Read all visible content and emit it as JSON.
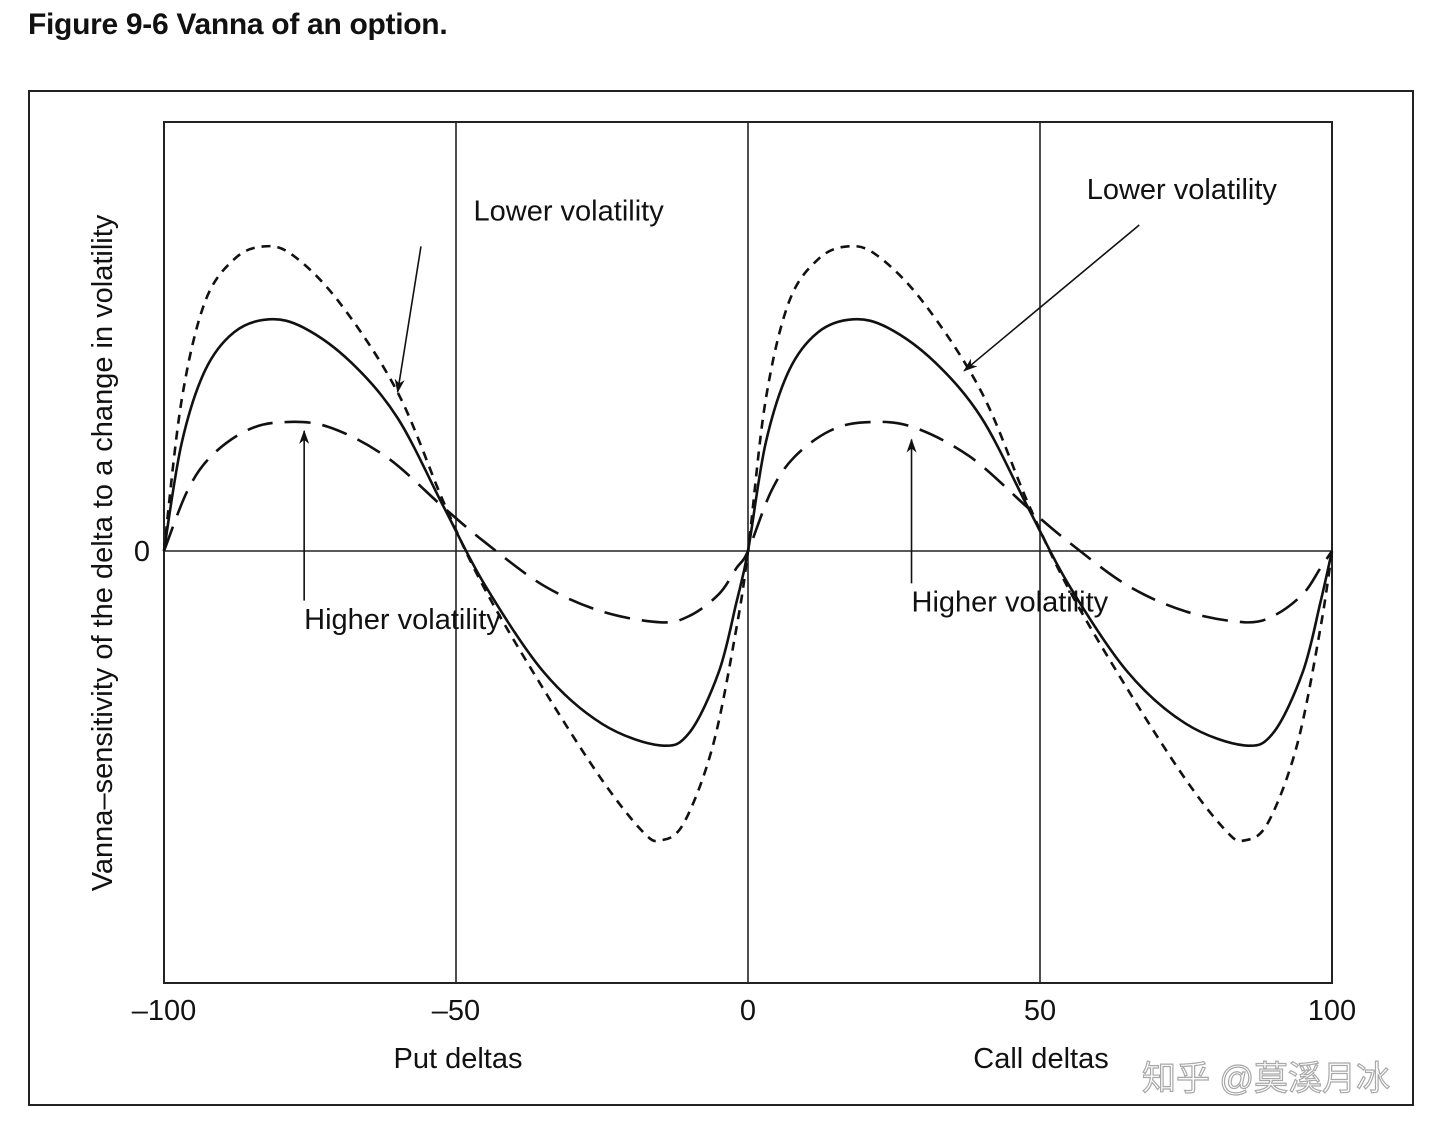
{
  "title": "Figure 9-6  Vanna of an option.",
  "watermark": "知乎 @莫溪月冰",
  "chart_data": {
    "type": "line",
    "title": "Figure 9-6  Vanna of an option.",
    "xlabel_put": "Put deltas",
    "xlabel_call": "Call deltas",
    "ylabel": "Vanna–sensitivity of the delta to a change in volatility",
    "xlim": [
      -100,
      100
    ],
    "ylim": [
      -1,
      1
    ],
    "x_ticks": [
      -100,
      -50,
      0,
      50,
      100
    ],
    "x_tick_labels": [
      "–100",
      "–50",
      "0",
      "50",
      "100"
    ],
    "y_ticks": [
      0
    ],
    "y_tick_labels": [
      "0"
    ],
    "vertical_gridlines": [
      -50,
      0,
      50
    ],
    "grid": false,
    "series": [
      {
        "style": "short-dash",
        "points": [
          [
            -100,
            0
          ],
          [
            -97,
            0.35
          ],
          [
            -93,
            0.58
          ],
          [
            -88,
            0.68
          ],
          [
            -83,
            0.71
          ],
          [
            -78,
            0.69
          ],
          [
            -70,
            0.58
          ],
          [
            -60,
            0.37
          ],
          [
            -52,
            0.11
          ],
          [
            -45,
            -0.09
          ],
          [
            -35,
            -0.32
          ],
          [
            -25,
            -0.53
          ],
          [
            -18,
            -0.65
          ],
          [
            -15,
            -0.67
          ],
          [
            -11,
            -0.63
          ],
          [
            -6,
            -0.45
          ],
          [
            -2,
            -0.18
          ],
          [
            0,
            0
          ],
          [
            3,
            0.35
          ],
          [
            7,
            0.58
          ],
          [
            12,
            0.68
          ],
          [
            17,
            0.71
          ],
          [
            22,
            0.69
          ],
          [
            30,
            0.58
          ],
          [
            40,
            0.37
          ],
          [
            48,
            0.11
          ],
          [
            55,
            -0.09
          ],
          [
            65,
            -0.32
          ],
          [
            75,
            -0.53
          ],
          [
            82,
            -0.65
          ],
          [
            85,
            -0.67
          ],
          [
            89,
            -0.63
          ],
          [
            94,
            -0.45
          ],
          [
            98,
            -0.18
          ],
          [
            100,
            0
          ]
        ]
      },
      {
        "style": "solid",
        "points": [
          [
            -100,
            0
          ],
          [
            -97,
            0.25
          ],
          [
            -93,
            0.42
          ],
          [
            -88,
            0.51
          ],
          [
            -82,
            0.54
          ],
          [
            -76,
            0.52
          ],
          [
            -68,
            0.44
          ],
          [
            -60,
            0.31
          ],
          [
            -52,
            0.1
          ],
          [
            -45,
            -0.08
          ],
          [
            -35,
            -0.28
          ],
          [
            -25,
            -0.4
          ],
          [
            -15,
            -0.45
          ],
          [
            -10,
            -0.42
          ],
          [
            -5,
            -0.28
          ],
          [
            -2,
            -0.12
          ],
          [
            0,
            0
          ],
          [
            3,
            0.25
          ],
          [
            7,
            0.42
          ],
          [
            12,
            0.51
          ],
          [
            18,
            0.54
          ],
          [
            24,
            0.52
          ],
          [
            32,
            0.44
          ],
          [
            40,
            0.31
          ],
          [
            48,
            0.1
          ],
          [
            55,
            -0.08
          ],
          [
            65,
            -0.28
          ],
          [
            75,
            -0.4
          ],
          [
            85,
            -0.45
          ],
          [
            90,
            -0.42
          ],
          [
            95,
            -0.28
          ],
          [
            98,
            -0.12
          ],
          [
            100,
            0
          ]
        ]
      },
      {
        "style": "long-dash",
        "points": [
          [
            -100,
            0
          ],
          [
            -96,
            0.14
          ],
          [
            -92,
            0.22
          ],
          [
            -86,
            0.28
          ],
          [
            -80,
            0.3
          ],
          [
            -72,
            0.29
          ],
          [
            -62,
            0.22
          ],
          [
            -52,
            0.1
          ],
          [
            -45,
            0.02
          ],
          [
            -35,
            -0.08
          ],
          [
            -25,
            -0.14
          ],
          [
            -15,
            -0.165
          ],
          [
            -10,
            -0.15
          ],
          [
            -5,
            -0.1
          ],
          [
            -2,
            -0.04
          ],
          [
            0,
            0
          ],
          [
            4,
            0.14
          ],
          [
            8,
            0.22
          ],
          [
            14,
            0.28
          ],
          [
            20,
            0.3
          ],
          [
            28,
            0.29
          ],
          [
            38,
            0.22
          ],
          [
            48,
            0.1
          ],
          [
            55,
            0.02
          ],
          [
            65,
            -0.08
          ],
          [
            75,
            -0.14
          ],
          [
            85,
            -0.165
          ],
          [
            90,
            -0.15
          ],
          [
            95,
            -0.1
          ],
          [
            98,
            -0.04
          ],
          [
            100,
            0
          ]
        ]
      }
    ],
    "annotations": [
      {
        "text": "Lower volatility",
        "text_at": [
          -47,
          0.77
        ],
        "arrow_from": [
          -56,
          0.71
        ],
        "arrow_to": [
          -60,
          0.37
        ]
      },
      {
        "text": "Lower volatility",
        "text_at": [
          58,
          0.82
        ],
        "arrow_from": [
          67,
          0.76
        ],
        "arrow_to": [
          37,
          0.42
        ]
      },
      {
        "text": "Higher volatility",
        "text_at": [
          -76,
          -0.18
        ],
        "arrow_from": [
          -76,
          -0.115
        ],
        "arrow_to": [
          -76,
          0.28
        ]
      },
      {
        "text": "Higher volatility",
        "text_at": [
          28,
          -0.14
        ],
        "arrow_from": [
          28,
          -0.075
        ],
        "arrow_to": [
          28,
          0.26
        ]
      }
    ]
  }
}
